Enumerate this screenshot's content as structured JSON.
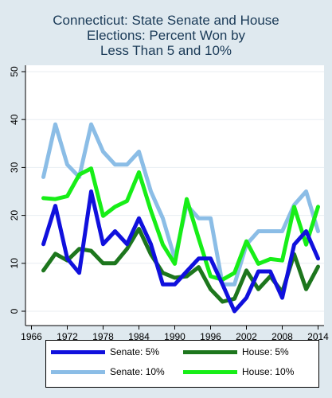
{
  "title_lines": [
    "Connecticut: State Senate and House",
    "Elections: Percent Won by",
    "Less Than 5 and 10%"
  ],
  "chart_data": {
    "type": "line",
    "title": "Connecticut: State Senate and House Elections: Percent Won by Less Than 5 and 10%",
    "xlabel": "",
    "ylabel": "",
    "xlim": [
      1965,
      2015
    ],
    "ylim": [
      0,
      50
    ],
    "x_ticks": [
      "1966",
      "1972",
      "1978",
      "1984",
      "1990",
      "1996",
      "2002",
      "2008",
      "2014"
    ],
    "y_ticks": [
      "0",
      "10",
      "20",
      "30",
      "40",
      "50"
    ],
    "grid": "horizontal",
    "legend_position": "bottom",
    "x": [
      1968,
      1970,
      1972,
      1974,
      1976,
      1978,
      1980,
      1982,
      1984,
      1986,
      1988,
      1990,
      1992,
      1994,
      1996,
      1998,
      2000,
      2002,
      2004,
      2006,
      2008,
      2010,
      2012,
      2014
    ],
    "series": [
      {
        "name": "Senate: 5%",
        "color": "#1010dd",
        "values": [
          14,
          22,
          11,
          8,
          25,
          14,
          16.7,
          14,
          19.4,
          14,
          5.6,
          5.6,
          8.3,
          11,
          11,
          5.6,
          0,
          2.8,
          8.3,
          8.3,
          2.8,
          13.9,
          16.7,
          11
        ]
      },
      {
        "name": "Senate: 10%",
        "color": "#8bbde6",
        "values": [
          28,
          39,
          30.6,
          28,
          39,
          33.3,
          30.6,
          30.6,
          33.3,
          25,
          19.4,
          11,
          22.2,
          19.4,
          19.4,
          5.6,
          5.6,
          13.9,
          16.7,
          16.7,
          16.7,
          22.2,
          25,
          16.7
        ]
      },
      {
        "name": "House: 5%",
        "color": "#1d761d",
        "values": [
          8.5,
          12,
          10.6,
          13,
          12.6,
          10,
          10,
          13,
          17.2,
          11.9,
          8,
          7,
          7.3,
          9.2,
          4.6,
          2,
          2.6,
          8.5,
          4.6,
          7.3,
          4,
          11.9,
          4.6,
          9.3
        ]
      },
      {
        "name": "House: 10%",
        "color": "#17ee17",
        "values": [
          23.6,
          23.4,
          24,
          28.5,
          29.8,
          19.9,
          21.8,
          23,
          29,
          21,
          13.9,
          9.9,
          23.4,
          15.2,
          7.3,
          6.6,
          8,
          14.6,
          9.9,
          10.9,
          10.6,
          21.8,
          13.9,
          21.8
        ]
      }
    ]
  },
  "legend": [
    {
      "label": "Senate: 5%",
      "color": "#1010dd"
    },
    {
      "label": "House: 5%",
      "color": "#1d761d"
    },
    {
      "label": "Senate: 10%",
      "color": "#8bbde6"
    },
    {
      "label": "House: 10%",
      "color": "#17ee17"
    }
  ]
}
